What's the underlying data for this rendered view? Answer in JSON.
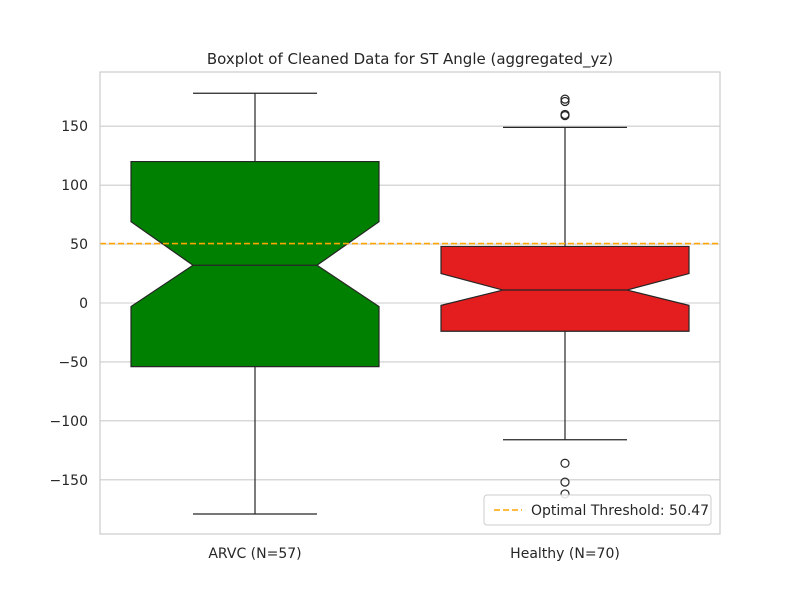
{
  "chart_data": {
    "type": "boxplot",
    "title": "Boxplot of Cleaned Data for ST Angle (aggregated_yz)",
    "xlabel": "",
    "ylabel": "",
    "ylim": [
      -196,
      196
    ],
    "yticks": [
      -150,
      -100,
      -50,
      0,
      50,
      100,
      150
    ],
    "ytick_labels": [
      "−150",
      "−100",
      "−50",
      "0",
      "50",
      "100",
      "150"
    ],
    "grid": true,
    "notched": true,
    "categories": [
      "ARVC (N=57)",
      "Healthy (N=70)"
    ],
    "boxes": [
      {
        "label": "ARVC (N=57)",
        "color": "#008000",
        "whisker_low": -179,
        "q1": -54,
        "notch_low": -3,
        "median": 32,
        "notch_high": 69,
        "q3": 120,
        "whisker_high": 178,
        "outliers": []
      },
      {
        "label": "Healthy (N=70)",
        "color": "#e41e1e",
        "whisker_low": -116,
        "q1": -24,
        "notch_low": -2,
        "median": 11,
        "notch_high": 25,
        "q3": 48,
        "whisker_high": 149,
        "outliers": [
          -162,
          -152,
          -136,
          159,
          160,
          171,
          173
        ]
      }
    ],
    "threshold": {
      "value": 50.47,
      "color": "#ffa500",
      "label": "Optimal Threshold: 50.47"
    },
    "legend_position": "lower-right"
  }
}
